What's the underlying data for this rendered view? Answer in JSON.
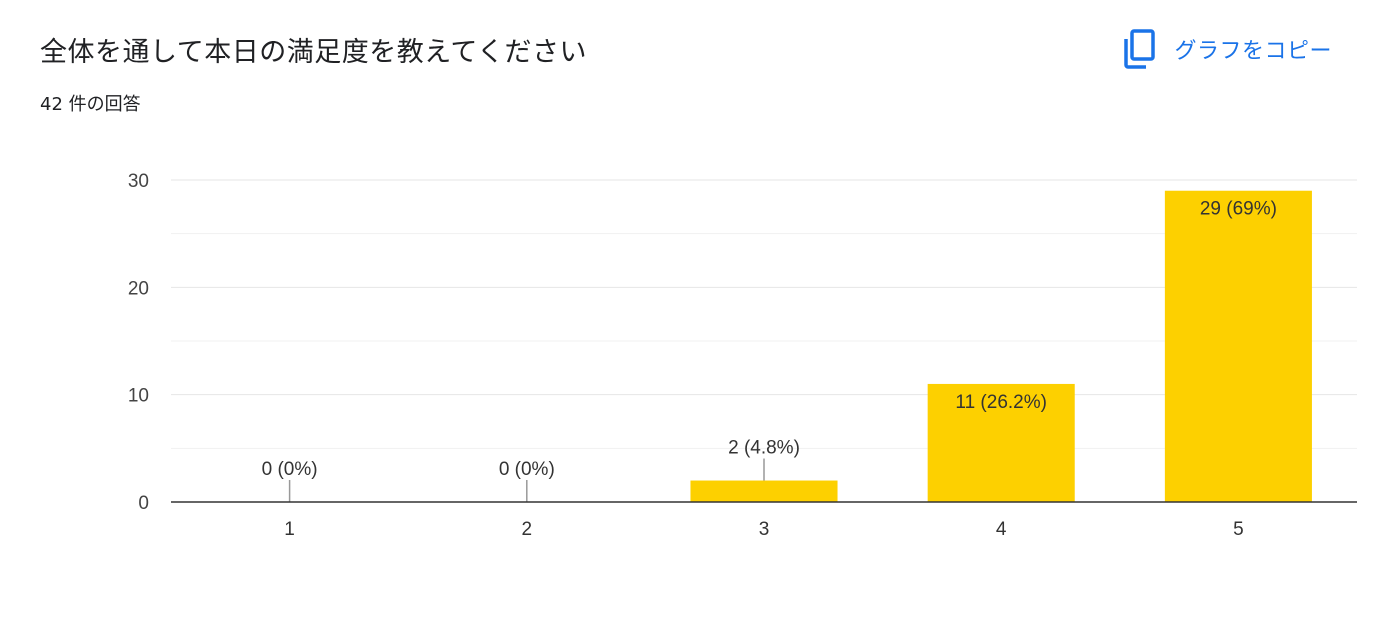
{
  "header": {
    "title": "全体を通して本日の満足度を教えてください",
    "response_count": "42 件の回答",
    "copy_label": "グラフをコピー",
    "copy_icon": "copy-icon",
    "accent_color": "#1a73e8"
  },
  "chart_data": {
    "type": "bar",
    "categories": [
      "1",
      "2",
      "3",
      "4",
      "5"
    ],
    "values": [
      0,
      0,
      2,
      11,
      29
    ],
    "labels": [
      "0 (0%)",
      "0 (0%)",
      "2 (4.8%)",
      "11 (26.2%)",
      "29 (69%)"
    ],
    "ylim": [
      0,
      30
    ],
    "yticks": [
      0,
      10,
      20,
      30
    ],
    "grid": true,
    "bar_color": "#fdd000"
  }
}
